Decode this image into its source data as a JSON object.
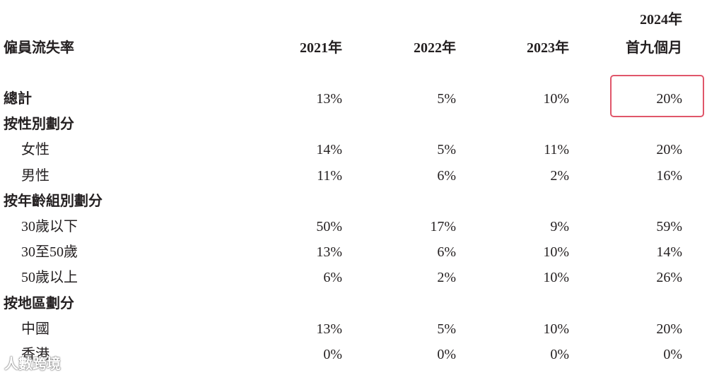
{
  "header": {
    "label": "僱員流失率",
    "columns": [
      [
        "2021年"
      ],
      [
        "2022年"
      ],
      [
        "2023年"
      ],
      [
        "2024年",
        "首九個月"
      ]
    ]
  },
  "total": {
    "label": "總計",
    "values": [
      "13%",
      "5%",
      "10%",
      "20%"
    ]
  },
  "sections": [
    {
      "title": "按性別劃分",
      "rows": [
        {
          "label": "女性",
          "values": [
            "14%",
            "5%",
            "11%",
            "20%"
          ]
        },
        {
          "label": "男性",
          "values": [
            "11%",
            "6%",
            "2%",
            "16%"
          ]
        }
      ]
    },
    {
      "title": "按年齡組別劃分",
      "rows": [
        {
          "label": "30歲以下",
          "values": [
            "50%",
            "17%",
            "9%",
            "59%"
          ]
        },
        {
          "label": "30至50歲",
          "values": [
            "13%",
            "6%",
            "10%",
            "14%"
          ]
        },
        {
          "label": "50歲以上",
          "values": [
            "6%",
            "2%",
            "10%",
            "26%"
          ]
        }
      ]
    },
    {
      "title": "按地區劃分",
      "rows": [
        {
          "label": "中國",
          "values": [
            "13%",
            "5%",
            "10%",
            "20%"
          ]
        },
        {
          "label": "香港",
          "values": [
            "0%",
            "0%",
            "0%",
            "0%"
          ]
        }
      ]
    }
  ],
  "watermark": "人數跨境"
}
